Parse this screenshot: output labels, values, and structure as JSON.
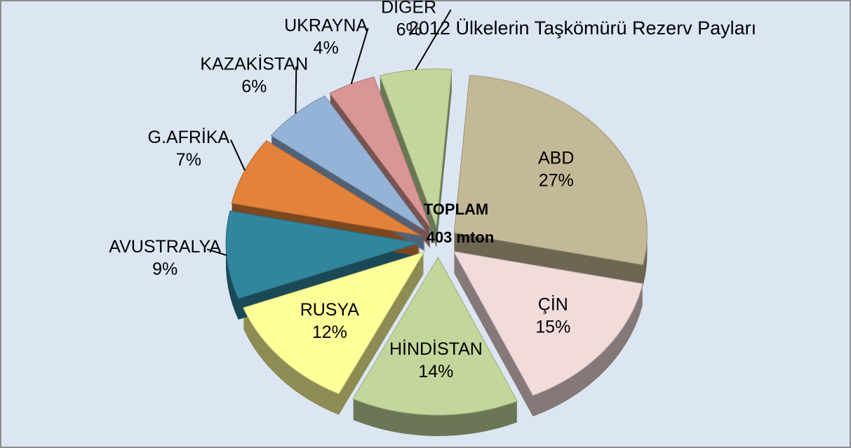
{
  "chart_data": {
    "type": "pie",
    "title": "2012 Ülkelerin Taşkömürü Rezerv Payları",
    "annotation": [
      "TOPLAM",
      "403 mton"
    ],
    "categories": [
      "ABD",
      "ÇİN",
      "HİNDİSTAN",
      "RUSYA",
      "AVUSTRALYA",
      "G.AFRİKA",
      "KAZAKİSTAN",
      "UKRAYNA",
      "DİĞER"
    ],
    "values": [
      27,
      15,
      14,
      12,
      9,
      7,
      6,
      4,
      6
    ],
    "value_labels": [
      "27%",
      "15%",
      "14%",
      "12%",
      "9%",
      "7%",
      "6%",
      "4%",
      "6%"
    ],
    "colors": [
      "#c4b996",
      "#f2dcdb",
      "#c3d69b",
      "#ffff99",
      "#31859c",
      "#e3823a",
      "#95b3d7",
      "#d99694",
      "#c3d69b"
    ]
  }
}
